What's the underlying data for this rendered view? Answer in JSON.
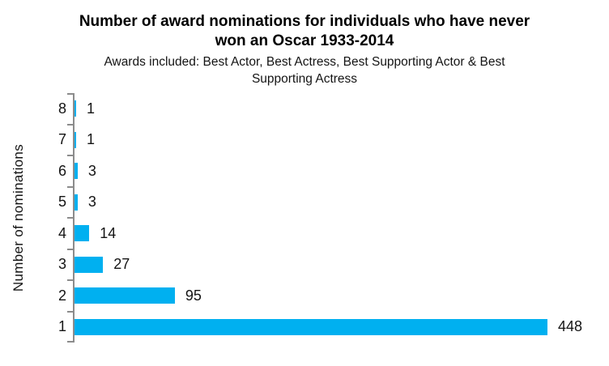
{
  "header": {
    "title_line1": "Number of award nominations for individuals who have never",
    "title_line2": "won an Oscar 1933-2014",
    "subtitle_line1": "Awards included: Best Actor, Best Actress, Best Supporting Actor & Best",
    "subtitle_line2": "Supporting Actress"
  },
  "chart_data": {
    "type": "bar",
    "orientation": "horizontal",
    "title": "Number of award nominations for individuals who have never won an Oscar 1933-2014",
    "subtitle": "Awards included: Best Actor, Best Actress, Best Supporting Actor & Best Supporting Actress",
    "ylabel": "Number of nominations",
    "xlabel": "",
    "categories": [
      "8",
      "7",
      "6",
      "5",
      "4",
      "3",
      "2",
      "1"
    ],
    "values": [
      1,
      1,
      3,
      3,
      14,
      27,
      95,
      448
    ],
    "data_labels": [
      "1",
      "1",
      "3",
      "3",
      "14",
      "27",
      "95",
      "448"
    ],
    "xlim": [
      0,
      460
    ],
    "grid": false,
    "legend": false,
    "bar_color": "#00B0F0",
    "axis_color": "#8C8C8C",
    "text_color": "#141414",
    "title_color": "#000000"
  }
}
